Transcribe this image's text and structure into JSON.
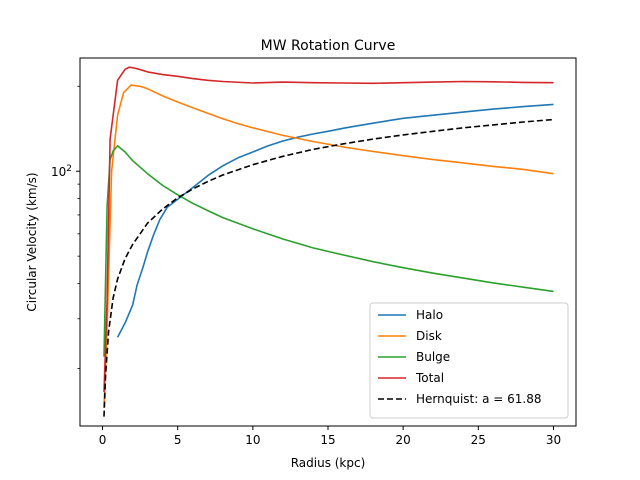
{
  "chart_data": {
    "type": "line",
    "title": "MW Rotation Curve",
    "xlabel": "Radius (kpc)",
    "ylabel": "Circular Velocity (km/s)",
    "xlim": [
      -1.5,
      31.5
    ],
    "ylim": [
      12.5,
      252
    ],
    "yscale": "log",
    "x_ticks": [
      0,
      5,
      10,
      15,
      20,
      25,
      30
    ],
    "x_tick_labels": [
      "0",
      "5",
      "10",
      "15",
      "20",
      "25",
      "30"
    ],
    "y_major_tick": 100,
    "y_major_tick_base": "10",
    "y_major_tick_exponent": "2",
    "y_minor_ticks": [
      20,
      30,
      40,
      50,
      60,
      70,
      80,
      90,
      200
    ],
    "grid": false,
    "legend_position": "lower-right",
    "series": [
      {
        "name": "Halo",
        "color": "#1f77b4",
        "style": "solid",
        "points": [
          [
            1,
            25.8
          ],
          [
            1.5,
            29.0
          ],
          [
            2,
            33.5
          ],
          [
            2.3,
            39.5
          ],
          [
            2.7,
            45.8
          ],
          [
            3.0,
            51.8
          ],
          [
            3.4,
            59.5
          ],
          [
            3.8,
            67.3
          ],
          [
            4.3,
            74.5
          ],
          [
            5,
            79.5
          ],
          [
            6,
            87.5
          ],
          [
            7,
            96.5
          ],
          [
            8,
            104.5
          ],
          [
            9,
            111.5
          ],
          [
            10,
            117
          ],
          [
            11,
            123
          ],
          [
            12,
            128
          ],
          [
            13,
            132
          ],
          [
            14,
            135.5
          ],
          [
            15,
            138.5
          ],
          [
            16,
            142
          ],
          [
            17,
            145
          ],
          [
            18,
            148
          ],
          [
            19,
            151
          ],
          [
            20,
            154
          ],
          [
            22,
            158
          ],
          [
            24,
            162
          ],
          [
            26,
            166
          ],
          [
            28,
            169.5
          ],
          [
            30,
            172.5
          ]
        ]
      },
      {
        "name": "Disk",
        "color": "#ff7f0e",
        "style": "solid",
        "points": [
          [
            0.1,
            14.5
          ],
          [
            0.3,
            28
          ],
          [
            0.6,
            100
          ],
          [
            1.0,
            158
          ],
          [
            1.4,
            190
          ],
          [
            1.9,
            202
          ],
          [
            2.5,
            200
          ],
          [
            3,
            196
          ],
          [
            4,
            185
          ],
          [
            5,
            176
          ],
          [
            6,
            168
          ],
          [
            7,
            160.5
          ],
          [
            8,
            153.5
          ],
          [
            9,
            147.5
          ],
          [
            10,
            142.5
          ],
          [
            12,
            134
          ],
          [
            14,
            127.5
          ],
          [
            16,
            122
          ],
          [
            18,
            117.5
          ],
          [
            20,
            113.5
          ],
          [
            22,
            110
          ],
          [
            24,
            107
          ],
          [
            26,
            104
          ],
          [
            28,
            101.5
          ],
          [
            30,
            98
          ]
        ]
      },
      {
        "name": "Bulge",
        "color": "#2ca02c",
        "style": "solid",
        "points": [
          [
            0.1,
            22
          ],
          [
            0.3,
            75
          ],
          [
            0.5,
            110
          ],
          [
            0.7,
            118
          ],
          [
            1.0,
            123
          ],
          [
            1.5,
            117
          ],
          [
            2,
            109
          ],
          [
            3,
            98
          ],
          [
            4,
            89
          ],
          [
            5,
            82.5
          ],
          [
            6,
            77
          ],
          [
            7,
            72.5
          ],
          [
            8,
            68.5
          ],
          [
            10,
            62.5
          ],
          [
            12,
            57.5
          ],
          [
            14,
            53.5
          ],
          [
            16,
            50.5
          ],
          [
            18,
            47.8
          ],
          [
            20,
            45.5
          ],
          [
            22,
            43.5
          ],
          [
            24,
            41.8
          ],
          [
            26,
            40.2
          ],
          [
            28,
            38.8
          ],
          [
            30,
            37.5
          ]
        ]
      },
      {
        "name": "Total",
        "color": "#d62728",
        "style": "solid",
        "points": [
          [
            0.1,
            16.5
          ],
          [
            0.3,
            35
          ],
          [
            0.5,
            130
          ],
          [
            1.0,
            210
          ],
          [
            1.5,
            230
          ],
          [
            1.8,
            234
          ],
          [
            2.3,
            231
          ],
          [
            3,
            225
          ],
          [
            4,
            220
          ],
          [
            5,
            217
          ],
          [
            6,
            213
          ],
          [
            7,
            210
          ],
          [
            8,
            208
          ],
          [
            10,
            205.5
          ],
          [
            12,
            207
          ],
          [
            14,
            206
          ],
          [
            16,
            205.5
          ],
          [
            18,
            205
          ],
          [
            20,
            206
          ],
          [
            22,
            207
          ],
          [
            24,
            208
          ],
          [
            26,
            207.5
          ],
          [
            28,
            206.5
          ],
          [
            30,
            206
          ]
        ]
      },
      {
        "name": "Hernquist: a = 61.88",
        "color": "#000000",
        "style": "dashed",
        "points": [
          [
            0.1,
            13.5
          ],
          [
            0.2,
            19
          ],
          [
            0.4,
            27
          ],
          [
            0.7,
            35.5
          ],
          [
            1.0,
            41.5
          ],
          [
            1.5,
            49
          ],
          [
            2,
            55
          ],
          [
            3,
            65.5
          ],
          [
            4,
            73.5
          ],
          [
            5,
            80.5
          ],
          [
            6,
            86.5
          ],
          [
            7,
            92
          ],
          [
            8,
            97
          ],
          [
            10,
            105.5
          ],
          [
            12,
            113
          ],
          [
            14,
            119.5
          ],
          [
            16,
            125
          ],
          [
            18,
            130
          ],
          [
            20,
            134.5
          ],
          [
            22,
            138.5
          ],
          [
            24,
            142.5
          ],
          [
            26,
            146
          ],
          [
            28,
            149.5
          ],
          [
            30,
            152.5
          ]
        ]
      }
    ]
  }
}
